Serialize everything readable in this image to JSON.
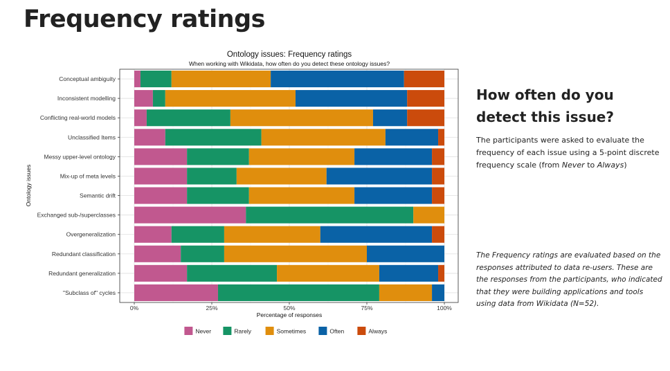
{
  "page": {
    "title": "Frequency ratings"
  },
  "side_panel": {
    "heading": "How often do you detect this issue?",
    "desc_part1": "The participants were asked to evaluate the frequency of each issue using a 5-point discrete frequency scale (from ",
    "desc_never": "Never",
    "desc_part2": " to ",
    "desc_always": "Always",
    "desc_part3": ")",
    "note": "The Frequency ratings are evaluated based on the responses attributed to data re-users. These are the responses from the participants, who indicated that they were building applications and tools using data from Wikidata (N=52)."
  },
  "chart_data": {
    "type": "bar",
    "orientation": "horizontal",
    "stacked": true,
    "title": "Ontology issues: Frequency ratings",
    "subtitle": "When working with Wikidata, how often do you detect these ontology issues?",
    "xlabel": "Percentage of responses",
    "ylabel": "Ontology issues",
    "xlim": [
      0,
      100
    ],
    "x_ticks": [
      "0%",
      "25%",
      "50%",
      "75%",
      "100%"
    ],
    "legend_position": "bottom",
    "grid": true,
    "categories": [
      "Conceptual ambiguity",
      "Inconsistent modelling",
      "Conflicting real-world models",
      "Unclassified Items",
      "Messy upper-level ontology",
      "Mix-up of meta levels",
      "Semantic drift",
      "Exchanged sub-/superclasses",
      "Overgeneralization",
      "Redundant classification",
      "Redundant generalization",
      "\"Subclass of\" cycles"
    ],
    "series": [
      {
        "name": "Never",
        "color": "#c1588f",
        "values": [
          2,
          6,
          4,
          10,
          17,
          17,
          17,
          36,
          12,
          15,
          17,
          27
        ]
      },
      {
        "name": "Rarely",
        "color": "#169465",
        "values": [
          10,
          4,
          27,
          31,
          20,
          16,
          20,
          54,
          17,
          14,
          29,
          52
        ]
      },
      {
        "name": "Sometimes",
        "color": "#e08e0d",
        "values": [
          32,
          42,
          46,
          40,
          34,
          29,
          34,
          10,
          31,
          46,
          33,
          17
        ]
      },
      {
        "name": "Often",
        "color": "#0a62a6",
        "values": [
          43,
          36,
          11,
          17,
          25,
          34,
          25,
          0,
          36,
          25,
          19,
          4
        ]
      },
      {
        "name": "Always",
        "color": "#cb4b0c",
        "values": [
          13,
          12,
          12,
          2,
          4,
          4,
          4,
          0,
          4,
          0,
          2,
          0
        ]
      }
    ]
  }
}
